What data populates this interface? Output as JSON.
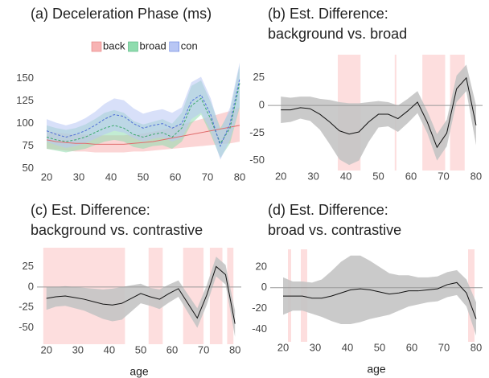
{
  "chart_data": [
    {
      "type": "line",
      "title": [
        "(a) Deceleration Phase (ms)"
      ],
      "x": [
        20,
        23,
        26,
        29,
        32,
        35,
        38,
        41,
        44,
        47,
        50,
        53,
        56,
        59,
        62,
        65,
        68,
        71,
        74,
        77,
        80
      ],
      "xlim": [
        17,
        81
      ],
      "ylim": [
        47,
        173
      ],
      "xticks": [
        20,
        30,
        40,
        50,
        60,
        70,
        80
      ],
      "yticks": [
        50,
        75,
        100,
        125,
        150
      ],
      "legend": "top",
      "series": [
        {
          "name": "back",
          "color": "#e06c6c",
          "fill": "#f7b3b3",
          "linestyle": "solid",
          "values": [
            82,
            80,
            79,
            78,
            78,
            77,
            77,
            77,
            77,
            78,
            79,
            80,
            82,
            84,
            86,
            88,
            90,
            92,
            94,
            96,
            98
          ],
          "lower": [
            72,
            71,
            70,
            69,
            69,
            68,
            68,
            68,
            68,
            69,
            69,
            70,
            71,
            72,
            73,
            74,
            75,
            76,
            77,
            78,
            80
          ],
          "upper": [
            92,
            90,
            89,
            88,
            88,
            87,
            87,
            87,
            87,
            88,
            89,
            91,
            93,
            96,
            99,
            102,
            105,
            108,
            111,
            114,
            118
          ]
        },
        {
          "name": "broad",
          "color": "#3aa86a",
          "fill": "#8fdcae",
          "linestyle": "dashed",
          "values": [
            85,
            82,
            80,
            82,
            85,
            90,
            95,
            98,
            95,
            88,
            85,
            88,
            90,
            85,
            95,
            120,
            128,
            105,
            78,
            95,
            145
          ],
          "lower": [
            72,
            70,
            68,
            70,
            72,
            76,
            80,
            82,
            80,
            74,
            72,
            75,
            76,
            72,
            80,
            100,
            110,
            88,
            62,
            78,
            118
          ],
          "upper": [
            98,
            95,
            93,
            95,
            99,
            105,
            112,
            115,
            112,
            103,
            99,
            102,
            105,
            100,
            112,
            142,
            148,
            124,
            95,
            114,
            165
          ]
        },
        {
          "name": "con",
          "color": "#4f6fd8",
          "fill": "#b8c6f4",
          "linestyle": "dashed",
          "values": [
            92,
            88,
            85,
            88,
            92,
            98,
            105,
            110,
            108,
            100,
            95,
            98,
            100,
            95,
            100,
            125,
            132,
            110,
            75,
            100,
            150
          ],
          "lower": [
            80,
            76,
            73,
            75,
            78,
            83,
            88,
            92,
            90,
            84,
            80,
            83,
            85,
            80,
            84,
            105,
            112,
            92,
            60,
            82,
            120
          ],
          "upper": [
            105,
            101,
            98,
            101,
            106,
            113,
            122,
            128,
            126,
            117,
            111,
            114,
            116,
            112,
            118,
            146,
            152,
            128,
            92,
            118,
            168
          ]
        }
      ]
    },
    {
      "type": "line",
      "title": [
        "(b) Est. Difference:",
        "background vs. broad"
      ],
      "x": [
        20,
        23,
        26,
        29,
        32,
        35,
        38,
        41,
        44,
        47,
        50,
        53,
        56,
        59,
        62,
        65,
        68,
        71,
        74,
        77,
        80
      ],
      "xlim": [
        16,
        82
      ],
      "ylim": [
        -59,
        46
      ],
      "xticks": [
        20,
        30,
        40,
        50,
        60,
        70,
        80
      ],
      "yticks": [
        -50,
        -25,
        0,
        25
      ],
      "refline": 0,
      "color": "#111111",
      "fill": "#c4c4c4",
      "shaded": [
        [
          37.5,
          44.5
        ],
        [
          55,
          55.5
        ],
        [
          63.5,
          70.5
        ],
        [
          72,
          76.5
        ]
      ],
      "values": [
        -4,
        -4,
        -2,
        -3,
        -8,
        -15,
        -23,
        -26,
        -24,
        -15,
        -8,
        -8,
        -12,
        -5,
        3,
        -15,
        -38,
        -25,
        15,
        25,
        -18
      ],
      "lower": [
        -16,
        -15,
        -12,
        -14,
        -22,
        -35,
        -49,
        -54,
        -50,
        -33,
        -20,
        -19,
        -24,
        -16,
        -7,
        -25,
        -50,
        -37,
        3,
        13,
        -36
      ],
      "upper": [
        8,
        7,
        8,
        8,
        6,
        5,
        3,
        2,
        2,
        3,
        4,
        3,
        0,
        6,
        13,
        -5,
        -26,
        -13,
        27,
        37,
        0
      ]
    },
    {
      "type": "line",
      "title": [
        "(c) Est. Difference:",
        "background vs. contrastive"
      ],
      "xlabel": "age",
      "x": [
        20,
        23,
        26,
        29,
        32,
        35,
        38,
        41,
        44,
        47,
        50,
        53,
        56,
        59,
        62,
        65,
        68,
        71,
        74,
        77,
        80
      ],
      "xlim": [
        17,
        82
      ],
      "ylim": [
        -70,
        48
      ],
      "xticks": [
        20,
        30,
        40,
        50,
        60,
        70,
        80
      ],
      "yticks": [
        -50,
        -25,
        0,
        25
      ],
      "refline": 0,
      "color": "#111111",
      "fill": "#c4c4c4",
      "shaded": [
        [
          19,
          45
        ],
        [
          52.5,
          57
        ],
        [
          63.5,
          70
        ],
        [
          72,
          76
        ],
        [
          77.5,
          79.5
        ]
      ],
      "values": [
        -14,
        -12,
        -11,
        -13,
        -15,
        -18,
        -21,
        -22,
        -20,
        -14,
        -8,
        -12,
        -15,
        -8,
        -2,
        -20,
        -38,
        -10,
        25,
        15,
        -45
      ],
      "lower": [
        -28,
        -24,
        -23,
        -26,
        -29,
        -34,
        -39,
        -42,
        -40,
        -30,
        -20,
        -23,
        -27,
        -19,
        -12,
        -31,
        -50,
        -22,
        13,
        3,
        -61
      ],
      "upper": [
        0,
        0,
        1,
        0,
        -1,
        -2,
        -3,
        -2,
        0,
        2,
        4,
        -1,
        -3,
        3,
        8,
        -9,
        -26,
        2,
        37,
        27,
        -29
      ]
    },
    {
      "type": "line",
      "title": [
        "(d) Est. Difference:",
        "broad vs. contrastive"
      ],
      "xlabel": "age",
      "x": [
        20,
        23,
        26,
        29,
        32,
        35,
        38,
        41,
        44,
        47,
        50,
        53,
        56,
        59,
        62,
        65,
        68,
        71,
        74,
        77,
        80
      ],
      "xlim": [
        16,
        82
      ],
      "ylim": [
        -52,
        37
      ],
      "xticks": [
        20,
        30,
        40,
        50,
        60,
        70,
        80
      ],
      "yticks": [
        -40,
        -20,
        0,
        20
      ],
      "refline": 0,
      "color": "#111111",
      "fill": "#c4c4c4",
      "shaded": [
        [
          21.5,
          22.5
        ],
        [
          25.5,
          27.5
        ],
        [
          77.5,
          79.5
        ]
      ],
      "values": [
        -8,
        -8,
        -8,
        -10,
        -10,
        -8,
        -5,
        -2,
        -1,
        -2,
        -4,
        -6,
        -5,
        -3,
        -3,
        -2,
        -1,
        3,
        5,
        -5,
        -30
      ],
      "lower": [
        -26,
        -22,
        -22,
        -25,
        -28,
        -32,
        -35,
        -35,
        -33,
        -30,
        -28,
        -26,
        -22,
        -18,
        -16,
        -14,
        -13,
        -9,
        -7,
        -18,
        -46
      ],
      "upper": [
        10,
        6,
        6,
        5,
        8,
        16,
        25,
        31,
        31,
        26,
        20,
        14,
        12,
        12,
        10,
        10,
        11,
        15,
        17,
        8,
        -14
      ]
    }
  ]
}
